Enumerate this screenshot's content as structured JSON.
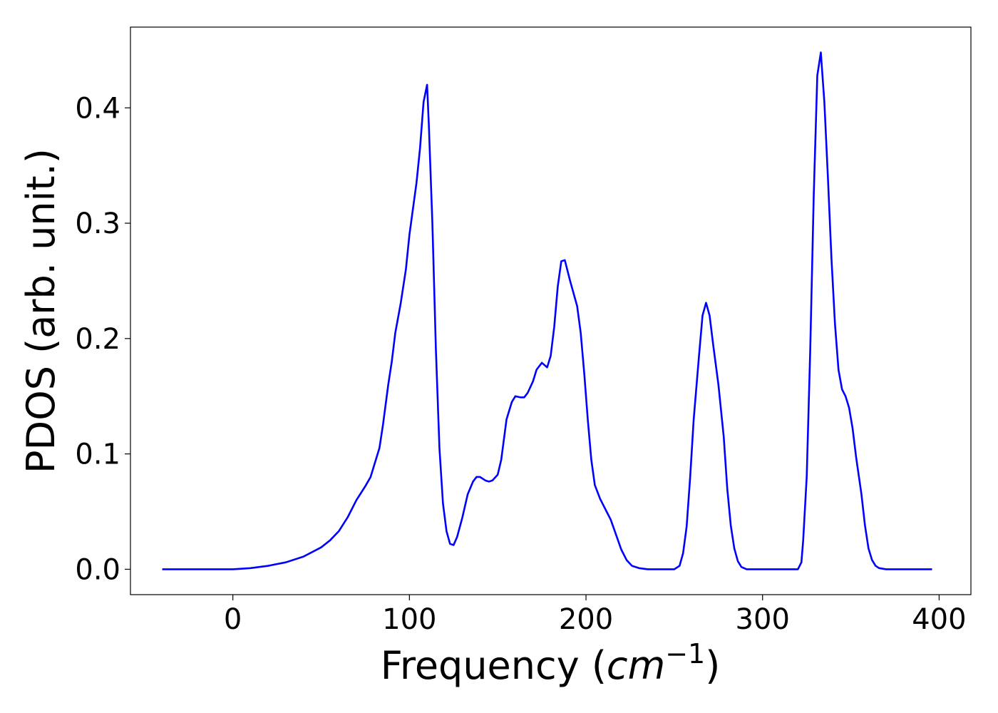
{
  "chart_data": {
    "type": "line",
    "xlabel": [
      "Frequency (",
      "cm",
      "−1",
      ")"
    ],
    "ylabel": "PDOS (arb. unit.)",
    "xlim": [
      -58,
      418
    ],
    "ylim": [
      -0.022,
      0.47
    ],
    "xticks": [
      0,
      100,
      200,
      300,
      400
    ],
    "yticks": [
      {
        "value": 0,
        "label": "0.0"
      },
      0.1,
      0.2,
      0.3,
      0.4
    ],
    "grid": false,
    "series": [
      {
        "color": "#0000ff",
        "x": [
          -40,
          0,
          10,
          20,
          30,
          40,
          50,
          55,
          60,
          65,
          70,
          75,
          78,
          80,
          83,
          85,
          88,
          90,
          92,
          95,
          98,
          100,
          104,
          106,
          108,
          110,
          111,
          113,
          115,
          117,
          119,
          121,
          123,
          125,
          127,
          130,
          133,
          136,
          138,
          140,
          143,
          145,
          147,
          150,
          152,
          155,
          158,
          160,
          163,
          165,
          167,
          170,
          172,
          175,
          178,
          180,
          182,
          184,
          186,
          188,
          191,
          195,
          197,
          199,
          201,
          203,
          205,
          208,
          211,
          214,
          217,
          220,
          223,
          226,
          230,
          235,
          250,
          253,
          255,
          257,
          259,
          261,
          264,
          266,
          268,
          270,
          272,
          275,
          278,
          280,
          282,
          284,
          286,
          288,
          291,
          320,
          322,
          323,
          325,
          327,
          329,
          331,
          333,
          335,
          337,
          339,
          341,
          343,
          345,
          347,
          349,
          351,
          353,
          356,
          358,
          360,
          362,
          364,
          366,
          370,
          396
        ],
        "values": [
          0,
          0,
          0.001,
          0.003,
          0.006,
          0.011,
          0.019,
          0.025,
          0.033,
          0.045,
          0.06,
          0.072,
          0.08,
          0.09,
          0.105,
          0.125,
          0.16,
          0.18,
          0.205,
          0.23,
          0.26,
          0.29,
          0.335,
          0.365,
          0.405,
          0.42,
          0.385,
          0.3,
          0.19,
          0.105,
          0.057,
          0.033,
          0.022,
          0.021,
          0.028,
          0.045,
          0.065,
          0.076,
          0.08,
          0.08,
          0.077,
          0.076,
          0.077,
          0.082,
          0.095,
          0.13,
          0.145,
          0.15,
          0.149,
          0.149,
          0.153,
          0.163,
          0.173,
          0.179,
          0.175,
          0.185,
          0.21,
          0.245,
          0.267,
          0.268,
          0.25,
          0.228,
          0.205,
          0.17,
          0.13,
          0.095,
          0.073,
          0.061,
          0.052,
          0.043,
          0.03,
          0.017,
          0.008,
          0.003,
          0.001,
          0,
          0,
          0.003,
          0.014,
          0.037,
          0.08,
          0.13,
          0.185,
          0.22,
          0.231,
          0.22,
          0.195,
          0.16,
          0.115,
          0.07,
          0.038,
          0.018,
          0.007,
          0.002,
          0,
          0,
          0.006,
          0.025,
          0.08,
          0.19,
          0.325,
          0.428,
          0.448,
          0.405,
          0.34,
          0.27,
          0.213,
          0.173,
          0.156,
          0.15,
          0.14,
          0.122,
          0.097,
          0.065,
          0.038,
          0.018,
          0.008,
          0.003,
          0.001,
          0,
          0
        ]
      }
    ]
  }
}
